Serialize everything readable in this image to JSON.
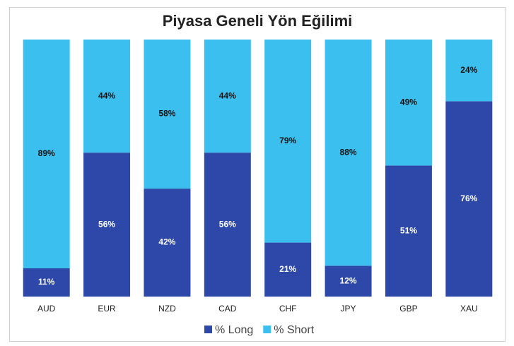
{
  "chart_data": {
    "type": "stacked_bar",
    "title": "Piyasa Geneli Yön Eğilimi",
    "categories": [
      "AUD",
      "EUR",
      "NZD",
      "CAD",
      "CHF",
      "JPY",
      "GBP",
      "XAU"
    ],
    "series": [
      {
        "name": "% Long",
        "color": "#2d48a8",
        "values": [
          11,
          56,
          42,
          56,
          21,
          12,
          51,
          76
        ],
        "value_labels": [
          "11%",
          "56%",
          "42%",
          "56%",
          "21%",
          "12%",
          "51%",
          "76%"
        ]
      },
      {
        "name": "% Short",
        "color": "#3bbfee",
        "values": [
          89,
          44,
          58,
          44,
          79,
          88,
          49,
          24
        ],
        "value_labels": [
          "89%",
          "44%",
          "58%",
          "44%",
          "79%",
          "88%",
          "49%",
          "24%"
        ]
      }
    ],
    "ylim": [
      0,
      100
    ],
    "legend": "bottom"
  }
}
